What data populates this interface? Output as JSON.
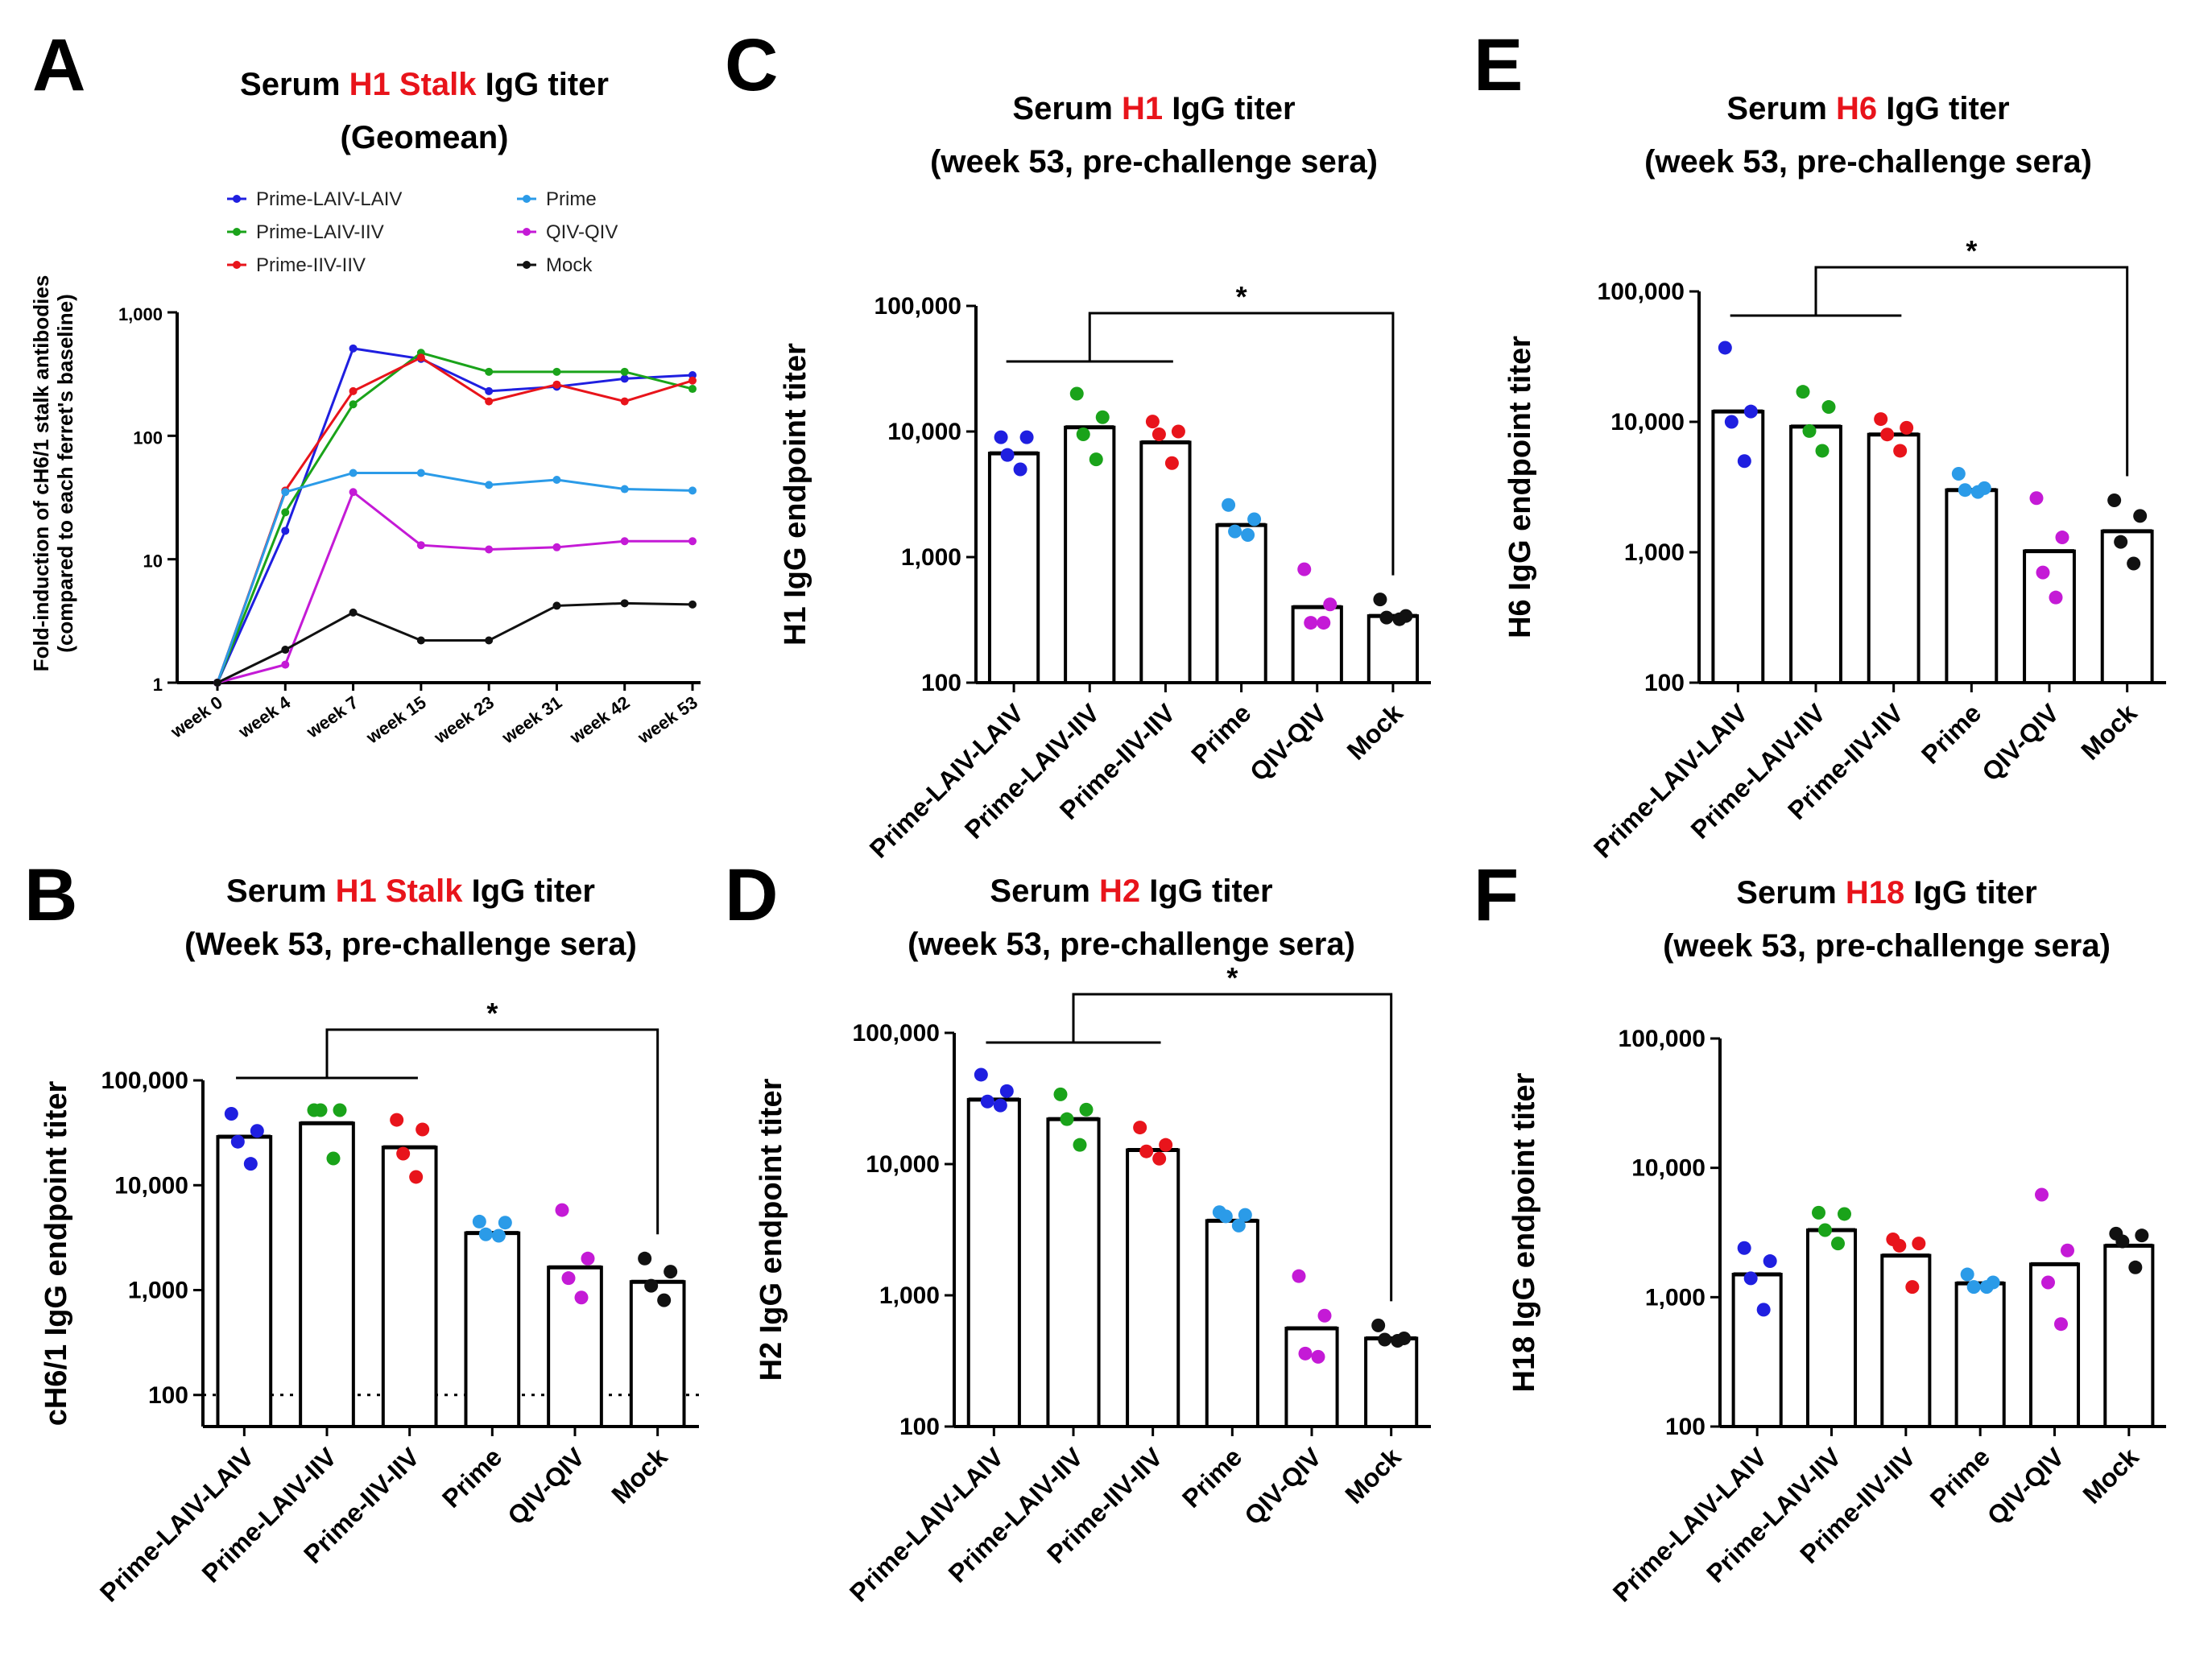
{
  "figure_panels": [
    "A",
    "B",
    "C",
    "D",
    "E",
    "F"
  ],
  "chart_data": [
    {
      "id": "A",
      "type": "line",
      "panel_label": "A",
      "title_lines": [
        {
          "runs": [
            {
              "text": "Serum ",
              "color": "#000000"
            },
            {
              "text": "H1 Stalk",
              "color": "#e8141b"
            },
            {
              "text": " IgG titer",
              "color": "#000000"
            }
          ]
        },
        {
          "runs": [
            {
              "text": "(Geomean)",
              "color": "#000000"
            }
          ]
        }
      ],
      "ylabel": [
        "Fold-induction of cH6/1 stalk antibodies",
        "(compared to each ferret's baseline)"
      ],
      "yscale": "log",
      "ylim": [
        1,
        1000
      ],
      "yticks": [
        1,
        10,
        100,
        1000
      ],
      "ytick_labels": [
        "1",
        "10",
        "100",
        "1,000"
      ],
      "categories": [
        "week 0",
        "week 4",
        "week 7",
        "week 15",
        "week 23",
        "week 31",
        "week 42",
        "week 53"
      ],
      "series": [
        {
          "name": "Prime-LAIV-LAIV",
          "color": "#1f1fe0",
          "values": [
            1,
            17,
            510,
            420,
            230,
            250,
            290,
            310
          ]
        },
        {
          "name": "Prime-LAIV-IIV",
          "color": "#1aa31a",
          "values": [
            1,
            24,
            180,
            470,
            330,
            330,
            330,
            240
          ]
        },
        {
          "name": "Prime-IIV-IIV",
          "color": "#e8141b",
          "values": [
            1,
            36,
            230,
            430,
            190,
            260,
            190,
            280
          ]
        },
        {
          "name": "Prime",
          "color": "#2b9be8",
          "values": [
            1,
            35,
            50,
            50,
            40,
            44,
            37,
            36
          ]
        },
        {
          "name": "QIV-QIV",
          "color": "#c41ad6",
          "values": [
            1,
            1.4,
            35,
            13,
            12,
            12.5,
            14,
            14
          ]
        },
        {
          "name": "Mock",
          "color": "#111111",
          "values": [
            1,
            1.85,
            3.7,
            2.2,
            2.2,
            4.2,
            4.4,
            4.3
          ]
        }
      ],
      "legend": [
        "Prime-LAIV-LAIV",
        "Prime",
        "Prime-LAIV-IIV",
        "QIV-QIV",
        "Prime-IIV-IIV",
        "Mock"
      ],
      "legend_location": "top"
    },
    {
      "id": "B",
      "type": "bar",
      "panel_label": "B",
      "title_lines": [
        {
          "runs": [
            {
              "text": "Serum ",
              "color": "#000000"
            },
            {
              "text": "H1 Stalk",
              "color": "#e8141b"
            },
            {
              "text": " IgG titer",
              "color": "#000000"
            }
          ]
        },
        {
          "runs": [
            {
              "text": "(Week 53, pre-challenge sera)",
              "color": "#000000"
            }
          ]
        }
      ],
      "ylabel": "cH6/1 IgG endpoint titer",
      "yscale": "log",
      "ylim": [
        50,
        100000
      ],
      "yticks": [
        100,
        1000,
        10000,
        100000
      ],
      "ytick_labels": [
        "100",
        "1,000",
        "10,000",
        "100,000"
      ],
      "categories": [
        "Prime-LAIV-LAIV",
        "Prime-LAIV-IIV",
        "Prime-IIV-IIV",
        "Prime",
        "QIV-QIV",
        "Mock"
      ],
      "colors": [
        "#1f1fe0",
        "#1aa31a",
        "#e8141b",
        "#2b9be8",
        "#c41ad6",
        "#111111"
      ],
      "values": [
        29000,
        39000,
        23000,
        3500,
        1650,
        1200
      ],
      "points": [
        [
          48000,
          33000,
          26000,
          16000
        ],
        [
          52000,
          52000,
          52000,
          18000
        ],
        [
          42000,
          34000,
          20000,
          12000
        ],
        [
          4500,
          4400,
          3400,
          3300
        ],
        [
          5800,
          2000,
          1300,
          850
        ],
        [
          2000,
          1500,
          1100,
          800
        ]
      ],
      "dotted_line": 100,
      "significance": {
        "group": [
          0,
          1,
          2
        ],
        "to": 5,
        "label": "*"
      }
    },
    {
      "id": "C",
      "type": "bar",
      "panel_label": "C",
      "title_lines": [
        {
          "runs": [
            {
              "text": "Serum ",
              "color": "#000000"
            },
            {
              "text": "H1",
              "color": "#e8141b"
            },
            {
              "text": " IgG titer",
              "color": "#000000"
            }
          ]
        },
        {
          "runs": [
            {
              "text": "(week 53, pre-challenge sera)",
              "color": "#000000"
            }
          ]
        }
      ],
      "ylabel": "H1 IgG endpoint titer",
      "yscale": "log",
      "ylim": [
        100,
        100000
      ],
      "yticks": [
        100,
        1000,
        10000,
        100000
      ],
      "ytick_labels": [
        "100",
        "1,000",
        "10,000",
        "100,000"
      ],
      "categories": [
        "Prime-LAIV-LAIV",
        "Prime-LAIV-IIV",
        "Prime-IIV-IIV",
        "Prime",
        "QIV-QIV",
        "Mock"
      ],
      "colors": [
        "#1f1fe0",
        "#1aa31a",
        "#e8141b",
        "#2b9be8",
        "#c41ad6",
        "#111111"
      ],
      "values": [
        6700,
        10800,
        8200,
        1800,
        400,
        340
      ],
      "points": [
        [
          9000,
          9000,
          6500,
          5000
        ],
        [
          20000,
          13000,
          9500,
          6000
        ],
        [
          12000,
          10000,
          9500,
          5600
        ],
        [
          2600,
          2000,
          1600,
          1500
        ],
        [
          800,
          420,
          300,
          300
        ],
        [
          460,
          340,
          330,
          320
        ]
      ],
      "significance": {
        "group": [
          0,
          1,
          2
        ],
        "to": 5,
        "label": "*"
      }
    },
    {
      "id": "D",
      "type": "bar",
      "panel_label": "D",
      "title_lines": [
        {
          "runs": [
            {
              "text": "Serum ",
              "color": "#000000"
            },
            {
              "text": "H2",
              "color": "#e8141b"
            },
            {
              "text": " IgG titer",
              "color": "#000000"
            }
          ]
        },
        {
          "runs": [
            {
              "text": "(week 53, pre-challenge sera)",
              "color": "#000000"
            }
          ]
        }
      ],
      "ylabel": "H2 IgG endpoint titer",
      "yscale": "log",
      "ylim": [
        100,
        100000
      ],
      "yticks": [
        100,
        1000,
        10000,
        100000
      ],
      "ytick_labels": [
        "100",
        "1,000",
        "10,000",
        "100,000"
      ],
      "categories": [
        "Prime-LAIV-LAIV",
        "Prime-LAIV-IIV",
        "Prime-IIV-IIV",
        "Prime",
        "QIV-QIV",
        "Mock"
      ],
      "colors": [
        "#1f1fe0",
        "#1aa31a",
        "#e8141b",
        "#2b9be8",
        "#c41ad6",
        "#111111"
      ],
      "values": [
        31000,
        22000,
        12800,
        3700,
        560,
        470
      ],
      "points": [
        [
          48000,
          36000,
          30000,
          28000
        ],
        [
          34000,
          26000,
          22000,
          14000
        ],
        [
          19000,
          14000,
          12500,
          11000
        ],
        [
          4300,
          4100,
          4000,
          3400
        ],
        [
          1400,
          700,
          360,
          340
        ],
        [
          590,
          470,
          460,
          450
        ]
      ],
      "significance": {
        "group": [
          0,
          1,
          2
        ],
        "to": 5,
        "label": "*"
      }
    },
    {
      "id": "E",
      "type": "bar",
      "panel_label": "E",
      "title_lines": [
        {
          "runs": [
            {
              "text": "Serum ",
              "color": "#000000"
            },
            {
              "text": "H6",
              "color": "#e8141b"
            },
            {
              "text": " IgG titer",
              "color": "#000000"
            }
          ]
        },
        {
          "runs": [
            {
              "text": "(week 53, pre-challenge sera)",
              "color": "#000000"
            }
          ]
        }
      ],
      "ylabel": "H6 IgG endpoint titer",
      "yscale": "log",
      "ylim": [
        100,
        100000
      ],
      "yticks": [
        100,
        1000,
        10000,
        100000
      ],
      "ytick_labels": [
        "100",
        "1,000",
        "10,000",
        "100,000"
      ],
      "categories": [
        "Prime-LAIV-LAIV",
        "Prime-LAIV-IIV",
        "Prime-IIV-IIV",
        "Prime",
        "QIV-QIV",
        "Mock"
      ],
      "colors": [
        "#1f1fe0",
        "#1aa31a",
        "#e8141b",
        "#2b9be8",
        "#c41ad6",
        "#111111"
      ],
      "values": [
        12000,
        9200,
        8000,
        3000,
        1020,
        1450
      ],
      "points": [
        [
          37000,
          12000,
          10000,
          5000
        ],
        [
          17000,
          13000,
          8500,
          6000
        ],
        [
          10500,
          9000,
          8000,
          6000
        ],
        [
          4000,
          3100,
          3000,
          2900
        ],
        [
          2600,
          1300,
          700,
          450
        ],
        [
          2500,
          1900,
          1200,
          820
        ]
      ],
      "significance": {
        "group": [
          0,
          1,
          2
        ],
        "to": 5,
        "label": "*"
      }
    },
    {
      "id": "F",
      "type": "bar",
      "panel_label": "F",
      "title_lines": [
        {
          "runs": [
            {
              "text": "Serum ",
              "color": "#000000"
            },
            {
              "text": "H18",
              "color": "#e8141b"
            },
            {
              "text": " IgG titer",
              "color": "#000000"
            }
          ]
        },
        {
          "runs": [
            {
              "text": "(week 53, pre-challenge sera)",
              "color": "#000000"
            }
          ]
        }
      ],
      "ylabel": "H18 IgG endpoint titer",
      "yscale": "log",
      "ylim": [
        100,
        100000
      ],
      "yticks": [
        100,
        1000,
        10000,
        100000
      ],
      "ytick_labels": [
        "100",
        "1,000",
        "10,000",
        "100,000"
      ],
      "categories": [
        "Prime-LAIV-LAIV",
        "Prime-LAIV-IIV",
        "Prime-IIV-IIV",
        "Prime",
        "QIV-QIV",
        "Mock"
      ],
      "colors": [
        "#1f1fe0",
        "#1aa31a",
        "#e8141b",
        "#2b9be8",
        "#c41ad6",
        "#111111"
      ],
      "values": [
        1500,
        3300,
        2100,
        1280,
        1800,
        2500
      ],
      "points": [
        [
          2400,
          1900,
          1400,
          800
        ],
        [
          4500,
          4400,
          3300,
          2600
        ],
        [
          2800,
          2600,
          2500,
          1200
        ],
        [
          1500,
          1300,
          1200,
          1200
        ],
        [
          6200,
          2300,
          1300,
          620
        ],
        [
          3100,
          3000,
          2700,
          1700
        ]
      ]
    }
  ]
}
